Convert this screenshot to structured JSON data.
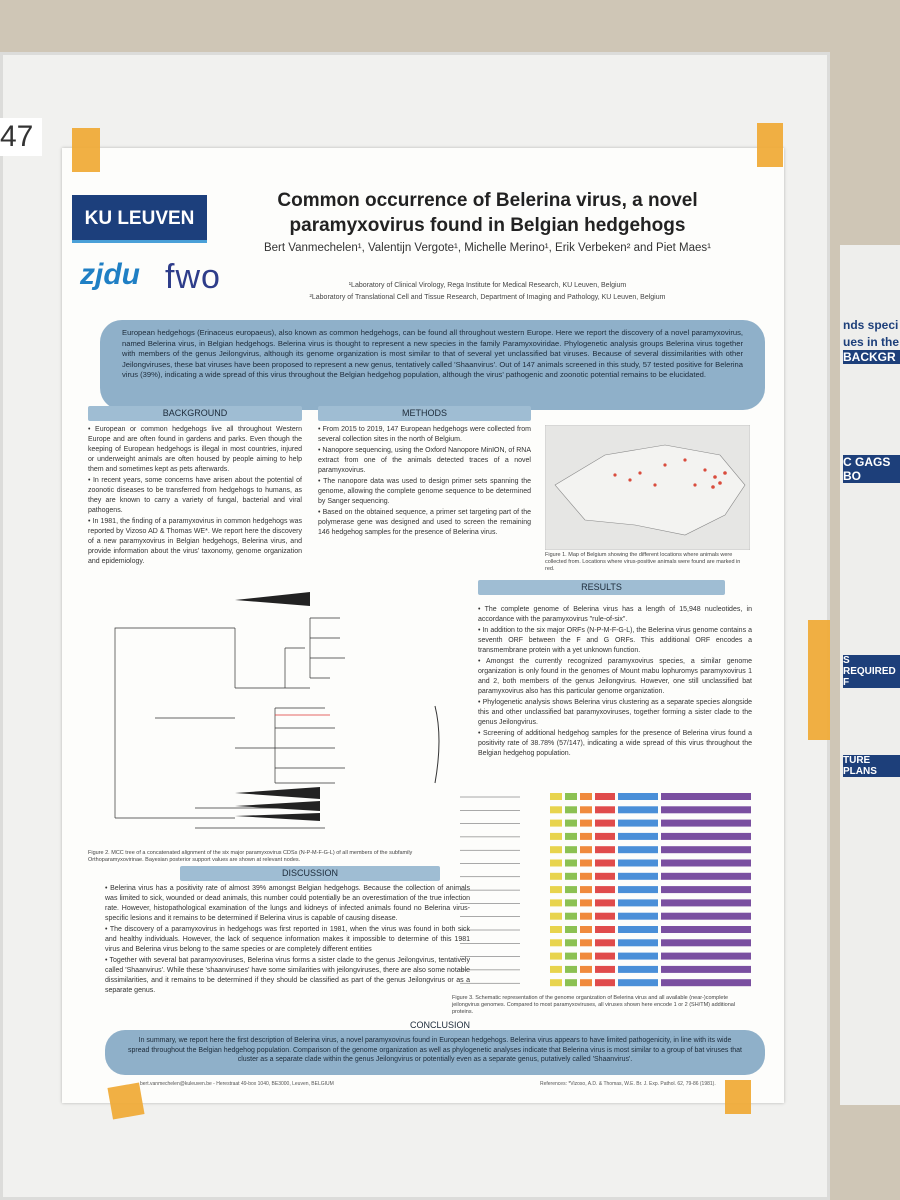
{
  "board_number": "47",
  "header": {
    "logos": [
      "KU LEUVEN",
      "zjdu",
      "fwo"
    ],
    "title": "Common occurrence of Belerina virus, a novel paramyxovirus found in Belgian hedgehogs",
    "authors": "Bert Vanmechelen¹, Valentijn Vergote¹, Michelle Merino¹, Erik Verbeken² and Piet Maes¹",
    "affiliations": [
      "¹Laboratory of Clinical Virology, Rega Institute for Medical Research, KU Leuven, Belgium",
      "²Laboratory of Translational Cell and Tissue Research, Department of Imaging and Pathology, KU Leuven, Belgium"
    ]
  },
  "abstract": "European hedgehogs (Erinaceus europaeus), also known as common hedgehogs, can be found all throughout western Europe. Here we report the discovery of a novel paramyxovirus, named Belerina virus, in Belgian hedgehogs. Belerina virus is thought to represent a new species in the family Paramyxoviridae. Phylogenetic analysis groups Belerina virus together with members of the genus Jeilongvirus, although its genome organization is most similar to that of several yet unclassified bat viruses. Because of several dissimilarities with other Jeilongviruses, these bat viruses have been proposed to represent a new genus, tentatively called 'Shaanvirus'. Out of 147 animals screened in this study, 57 tested positive for Belerina virus (39%), indicating a wide spread of this virus throughout the Belgian hedgehog population, although the virus' pathogenic and zoonotic potential remains to be elucidated.",
  "sections": {
    "background": {
      "heading": "BACKGROUND",
      "bullets": [
        "• European or common hedgehogs live all throughout Western Europe and are often found in gardens and parks. Even though the keeping of European hedgehogs is illegal in most countries, injured or underweight animals are often housed by people aiming to help them and sometimes kept as pets afterwards.",
        "• In recent years, some concerns have arisen about the potential of zoonotic diseases to be transferred from hedgehogs to humans, as they are known to carry a variety of fungal, bacterial and viral pathogens.",
        "• In 1981, the finding of a paramyxovirus in common hedgehogs was reported by Vizoso AD & Thomas WE*. We report here the discovery of a new paramyxovirus in Belgian hedgehogs, Belerina virus, and provide information about the virus' taxonomy, genome organization and epidemiology."
      ]
    },
    "methods": {
      "heading": "METHODS",
      "bullets": [
        "• From 2015 to 2019, 147 European hedgehogs were collected from several collection sites in the north of Belgium.",
        "• Nanopore sequencing, using the Oxford Nanopore MinION, of RNA extract from one of the animals detected traces of a novel paramyxovirus.",
        "• The nanopore data was used to design primer sets spanning the genome, allowing the complete genome sequence to be determined by Sanger sequencing.",
        "• Based on the obtained sequence, a primer set targeting part of the polymerase gene was designed and used to screen the remaining 146 hedgehog samples for the presence of Belerina virus."
      ]
    },
    "results": {
      "heading": "RESULTS",
      "bullets": [
        "• The complete genome of Belerina virus has a length of 15,948 nucleotides, in accordance with the paramyxovirus \"rule-of-six\".",
        "• In addition to the six major ORFs (N-P-M-F-G-L), the Belerina virus genome contains a seventh ORF between the F and G ORFs. This additional ORF encodes a transmembrane protein with a yet unknown function.",
        "• Amongst the currently recognized paramyxovirus species, a similar genome organization is only found in the genomes of Mount mabu lophuromys paramyxovirus 1 and 2, both members of the genus Jeilongvirus. However, one still unclassified bat paramyxovirus also has this particular genome organization.",
        "• Phylogenetic analysis shows Belerina virus clustering as a separate species alongside this and other unclassified bat paramyxoviruses, together forming a sister clade to the genus Jeilongvirus.",
        "• Screening of additional hedgehog samples for the presence of Belerina virus found a positivity rate of 38.78% (57/147), indicating a wide spread of this virus throughout the Belgian hedgehog population."
      ]
    },
    "discussion": {
      "heading": "DISCUSSION",
      "bullets": [
        "• Belerina virus has a positivity rate of almost 39% amongst Belgian hedgehogs. Because the collection of animals was limited to sick, wounded or dead animals, this number could potentially be an overestimation of the true infection rate. However, histopathological examination of the lungs and kidneys of infected animals found no Belerina virus-specific lesions and it remains to be determined if Belerina virus is capable of causing disease.",
        "• The discovery of a paramyxovirus in hedgehogs was first reported in 1981, when the virus was found in both sick and healthy individuals. However, the lack of sequence information makes it impossible to determine of this 1981 virus and Belerina virus belong to the same species or are completely different entities",
        "• Together with several bat paramyxoviruses, Belerina virus forms a sister clade to the genus Jeilongvirus, tentatively called 'Shaanvirus'. While these 'shaanviruses' have some similarities with jeilongviruses, there are also some notable dissimilarities, and it remains to be determined if they should be classified as part of the genus Jeilongvirus or as a separate genus."
      ]
    },
    "conclusion": {
      "heading": "CONCLUSION",
      "text": "In summary, we report here the first description of Belerina virus, a novel paramyxovirus found in European hedgehogs. Belerina virus appears to have limited pathogenicity, in line with its wide spread throughout the Belgian hedgehog population. Comparison of the genome organization as well as phylogenetic analyses indicate that Belerina virus is most similar to a group of bat viruses that cluster as a separate clade within the genus Jeilongvirus or potentially even as a separate genus, putatively called 'Shaanvirus'."
    }
  },
  "figures": [
    {
      "caption": "Figure 1. Map of Belgium showing the different locations where animals were collected from. Locations where virus-positive animals were found are marked in red."
    },
    {
      "caption": "Figure 2. MCC tree of a concatenated alignment of the six major paramyxovirus CDSs (N-P-M-F-G-L) of all members of the subfamily Orthoparamyxovirinae. Bayesian posterior support values are shown at relevant nodes."
    },
    {
      "caption": "Figure 3. Schematic representation of the genome organization of Belerina virus and all available (near-)complete jeilongvirus genomes. Compared to most paramyxoviruses, all viruses shown here encode 1 or 2 (SH/TM) additional proteins."
    }
  ],
  "footer": {
    "contact": "bert.vanmechelen@kuleuven.be - Herestraat 49-box 1040, BE3000, Leuven, BELGIUM",
    "references": "References: *Vizoso, A.D. & Thomas, W.E. Br. J. Exp. Pathol. 62, 79-86 (1981)."
  },
  "side_poster": {
    "headings": [
      "nds speci",
      "ues in the",
      "BACKGR",
      "C GAGS BO",
      "S REQUIRED F",
      "TURE PLANS"
    ]
  }
}
